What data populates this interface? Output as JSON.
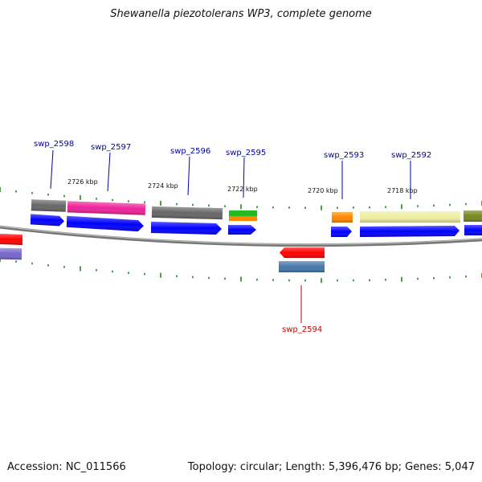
{
  "title": "Shewanella piezotolerans WP3, complete genome",
  "footer": {
    "accession": "Accession: NC_011566",
    "summary": "Topology: circular; Length: 5,396,476 bp; Genes: 5,047"
  },
  "position_labels": [
    "2726 kbp",
    "2724 kbp",
    "2722 kbp",
    "2720 kbp",
    "2718 kbp"
  ],
  "gene_labels": [
    {
      "name": "swp_2598",
      "strand": "forward",
      "color": "#0000aa"
    },
    {
      "name": "swp_2597",
      "strand": "forward",
      "color": "#0000aa"
    },
    {
      "name": "swp_2596",
      "strand": "forward",
      "color": "#0000aa"
    },
    {
      "name": "swp_2595",
      "strand": "forward",
      "color": "#0000aa"
    },
    {
      "name": "swp_2593",
      "strand": "forward",
      "color": "#0000aa"
    },
    {
      "name": "swp_2592",
      "strand": "forward",
      "color": "#0000aa"
    },
    {
      "name": "swp_2594",
      "strand": "reverse",
      "color": "#cc0000"
    }
  ],
  "colors": {
    "backbone": "#888888",
    "tick": "#1a8a1a",
    "cds": "#0000ff",
    "cog_gray": "#666666",
    "cog_magenta": "#ee2299",
    "cog_green": "#22bb22",
    "cog_orange": "#ff8800",
    "cog_khaki": "#eeeea0",
    "cog_olive": "#778822",
    "cog_red": "#ff0000",
    "cog_steelblue": "#4477aa",
    "cog_slateblue": "#7766cc"
  }
}
